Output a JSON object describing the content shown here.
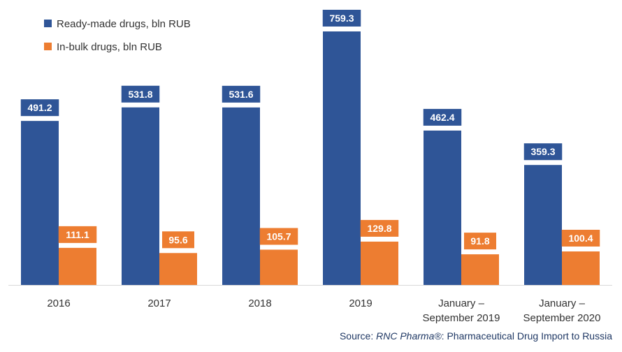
{
  "chart_data": {
    "type": "bar",
    "title": "",
    "xlabel": "",
    "ylabel": "",
    "ylim": [
      0,
      800
    ],
    "grid": false,
    "legend_position": "top-left",
    "categories": [
      [
        "2016"
      ],
      [
        "2017"
      ],
      [
        "2018"
      ],
      [
        "2019"
      ],
      [
        "January –",
        "September 2019"
      ],
      [
        "January –",
        "September 2020"
      ]
    ],
    "series": [
      {
        "name": "Ready-made drugs, bln RUB",
        "color": "#2f5597",
        "values": [
          491.2,
          531.8,
          531.6,
          759.3,
          462.4,
          359.3
        ],
        "labels": [
          "491.2",
          "531.8",
          "531.6",
          "759.3",
          "462.4",
          "359.3"
        ]
      },
      {
        "name": "In-bulk drugs, bln RUB",
        "color": "#ed7d31",
        "values": [
          111.1,
          95.6,
          105.7,
          129.8,
          91.8,
          100.4
        ],
        "labels": [
          "111.1",
          "95.6",
          "105.7",
          "129.8",
          "91.8",
          "100.4"
        ]
      }
    ]
  },
  "source": {
    "prefix": "Source: ",
    "brand": "RNC Pharma®",
    "suffix": ": Pharmaceutical Drug Import to Russia"
  }
}
